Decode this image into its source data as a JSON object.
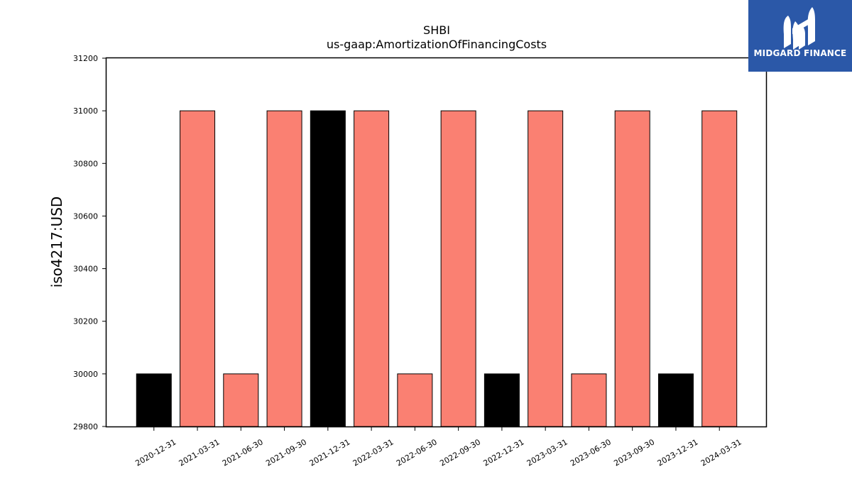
{
  "brand": {
    "name": "MIDGARD FINANCE",
    "logo_icon": "stylized-m-logo-icon",
    "background_color": "#2b58a8",
    "text_color": "#ffffff"
  },
  "chart_data": {
    "type": "bar",
    "title": "SHBI",
    "subtitle": "us-gaap:AmortizationOfFinancingCosts",
    "xlabel": "",
    "ylabel": "iso4217:USD",
    "ylim": [
      29800,
      31200
    ],
    "yticks": [
      29800,
      30000,
      30200,
      30400,
      30600,
      30800,
      31000,
      31200
    ],
    "grid": false,
    "categories": [
      "2020-12-31",
      "2021-03-31",
      "2021-06-30",
      "2021-09-30",
      "2021-12-31",
      "2022-03-31",
      "2022-06-30",
      "2022-09-30",
      "2022-12-31",
      "2023-03-31",
      "2023-06-30",
      "2023-09-30",
      "2023-12-31",
      "2024-03-31"
    ],
    "values": [
      30000,
      31000,
      30000,
      31000,
      31000,
      31000,
      30000,
      31000,
      30000,
      31000,
      30000,
      31000,
      30000,
      31000
    ],
    "bar_colors": [
      "#000000",
      "#fa8072",
      "#fa8072",
      "#fa8072",
      "#000000",
      "#fa8072",
      "#fa8072",
      "#fa8072",
      "#000000",
      "#fa8072",
      "#fa8072",
      "#fa8072",
      "#000000",
      "#fa8072"
    ],
    "edge_color": "#000000"
  }
}
